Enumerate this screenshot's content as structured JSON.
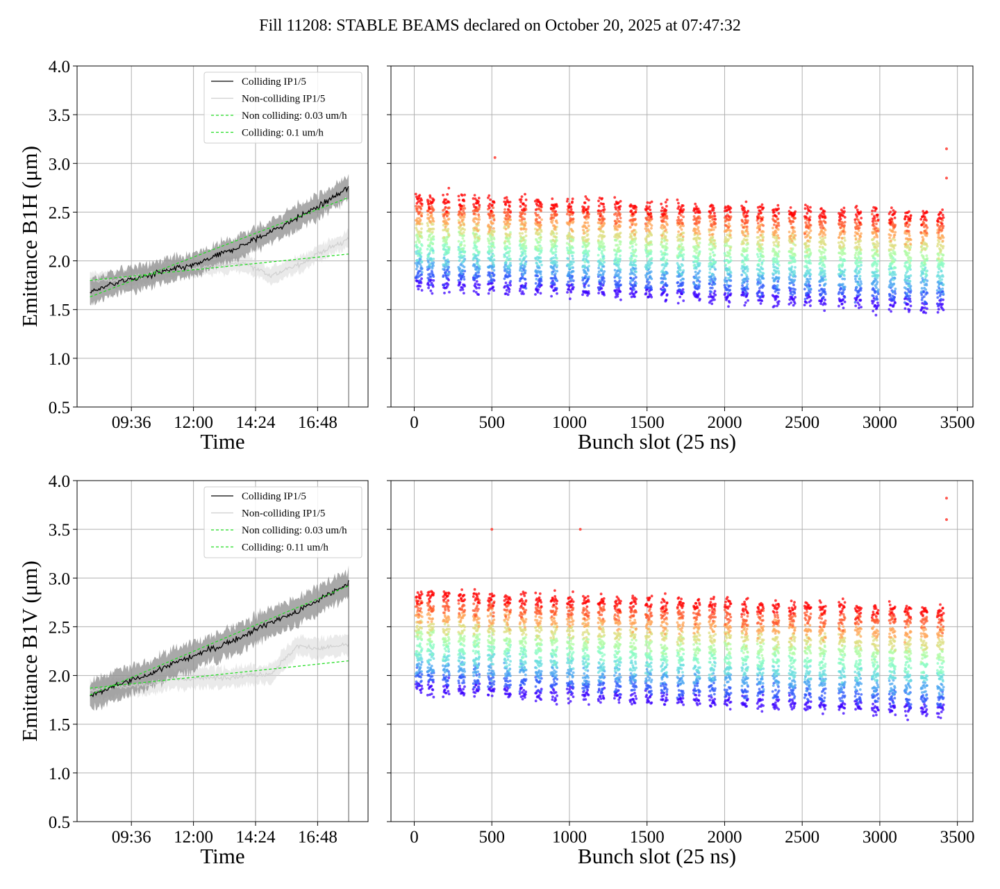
{
  "title": "Fill 11208: STABLE BEAMS declared on October 20, 2025 at 07:47:32",
  "chart_data": [
    {
      "type": "line",
      "panel": "top-left",
      "xlabel": "Time",
      "ylabel": "Emittance B1H (μm)",
      "ylim": [
        0.5,
        4.0
      ],
      "yticks": [
        "4.0",
        "3.5",
        "3.0",
        "2.5",
        "2.0",
        "1.5",
        "1.0",
        "0.5"
      ],
      "xticks": [
        "09:36",
        "12:00",
        "14:24",
        "16:48"
      ],
      "grid": true,
      "legend_position": "top-right",
      "legend": [
        "Colliding IP1/5",
        "Non-colliding IP1/5",
        "Non colliding: 0.03 um/h",
        "Colliding: 0.1 um/h"
      ],
      "series": [
        {
          "name": "Colliding IP1/5",
          "x": [
            "08:00",
            "09:00",
            "10:00",
            "11:00",
            "12:00",
            "13:00",
            "14:00",
            "15:00",
            "16:00",
            "17:00",
            "18:00"
          ],
          "y": [
            1.68,
            1.78,
            1.83,
            1.9,
            1.95,
            2.06,
            2.17,
            2.3,
            2.44,
            2.58,
            2.75
          ],
          "band": 0.12
        },
        {
          "name": "Non-colliding IP1/5",
          "x": [
            "08:00",
            "09:00",
            "10:00",
            "11:00",
            "12:00",
            "13:00",
            "14:00",
            "15:00",
            "16:00",
            "17:00",
            "18:00"
          ],
          "y": [
            1.8,
            1.8,
            1.85,
            1.9,
            1.93,
            1.95,
            1.98,
            1.85,
            1.95,
            2.1,
            2.22
          ],
          "band": 0.08
        },
        {
          "name": "Non colliding: 0.03 um/h",
          "x": [
            "08:00",
            "18:00"
          ],
          "y": [
            1.8,
            2.07
          ]
        },
        {
          "name": "Colliding: 0.1 um/h",
          "x": [
            "08:00",
            "18:00"
          ],
          "y": [
            1.63,
            2.65
          ]
        }
      ]
    },
    {
      "type": "scatter",
      "panel": "top-right",
      "xlabel": "Bunch slot (25 ns)",
      "ylim": [
        0.5,
        4.0
      ],
      "xlim": [
        -150,
        3600
      ],
      "xticks": [
        "0",
        "500",
        "1000",
        "1500",
        "2000",
        "2500",
        "3000",
        "3500"
      ],
      "grid": true,
      "colormap": "rainbow (violet = early, red = late)",
      "trains": [
        10,
        85,
        185,
        285,
        380,
        475,
        580,
        680,
        780,
        880,
        985,
        1085,
        1185,
        1290,
        1390,
        1490,
        1590,
        1695,
        1800,
        1900,
        2000,
        2110,
        2210,
        2310,
        2415,
        2515,
        2610,
        2735,
        2840,
        2950,
        3060,
        3160,
        3265,
        3370
      ],
      "train_length_slots": 40,
      "start_range_um": [
        1.6,
        2.1
      ],
      "end_range_um": [
        1.45,
        2.75
      ],
      "outliers": [
        {
          "x": 3430,
          "y": 3.15
        },
        {
          "x": 3430,
          "y": 2.85
        },
        {
          "x": 520,
          "y": 3.06
        }
      ]
    },
    {
      "type": "line",
      "panel": "bottom-left",
      "xlabel": "Time",
      "ylabel": "Emittance B1V (μm)",
      "ylim": [
        0.5,
        4.0
      ],
      "yticks": [
        "4.0",
        "3.5",
        "3.0",
        "2.5",
        "2.0",
        "1.5",
        "1.0",
        "0.5"
      ],
      "xticks": [
        "09:36",
        "12:00",
        "14:24",
        "16:48"
      ],
      "grid": true,
      "legend_position": "top-right",
      "legend": [
        "Colliding IP1/5",
        "Non-colliding IP1/5",
        "Non colliding: 0.03 um/h",
        "Colliding: 0.11 um/h"
      ],
      "series": [
        {
          "name": "Colliding IP1/5",
          "x": [
            "08:00",
            "09:00",
            "10:00",
            "11:00",
            "12:00",
            "13:00",
            "14:00",
            "15:00",
            "16:00",
            "17:00",
            "18:00"
          ],
          "y": [
            1.78,
            1.9,
            1.98,
            2.1,
            2.2,
            2.3,
            2.42,
            2.55,
            2.65,
            2.8,
            2.95
          ],
          "band": 0.14
        },
        {
          "name": "Non-colliding IP1/5",
          "x": [
            "08:00",
            "09:00",
            "10:00",
            "11:00",
            "12:00",
            "13:00",
            "14:00",
            "15:00",
            "16:00",
            "17:00",
            "18:00"
          ],
          "y": [
            1.85,
            1.88,
            1.9,
            1.95,
            1.97,
            1.98,
            2.0,
            2.02,
            2.3,
            2.28,
            2.32
          ],
          "band": 0.1
        },
        {
          "name": "Non colliding: 0.03 um/h",
          "x": [
            "08:00",
            "18:00"
          ],
          "y": [
            1.87,
            2.15
          ]
        },
        {
          "name": "Colliding: 0.11 um/h",
          "x": [
            "08:00",
            "18:00"
          ],
          "y": [
            1.8,
            2.92
          ]
        }
      ]
    },
    {
      "type": "scatter",
      "panel": "bottom-right",
      "xlabel": "Bunch slot (25 ns)",
      "ylim": [
        0.5,
        4.0
      ],
      "xlim": [
        -150,
        3600
      ],
      "xticks": [
        "0",
        "500",
        "1000",
        "1500",
        "2000",
        "2500",
        "3000",
        "3500"
      ],
      "grid": true,
      "colormap": "rainbow (violet = early, red = late)",
      "trains": [
        10,
        85,
        185,
        285,
        380,
        475,
        580,
        680,
        780,
        880,
        985,
        1085,
        1185,
        1290,
        1390,
        1490,
        1590,
        1695,
        1800,
        1900,
        2000,
        2110,
        2210,
        2310,
        2415,
        2515,
        2610,
        2735,
        2840,
        2950,
        3060,
        3160,
        3265,
        3370
      ],
      "train_length_slots": 40,
      "start_range_um": [
        1.7,
        2.2
      ],
      "end_range_um": [
        1.45,
        2.95
      ],
      "outliers": [
        {
          "x": 3430,
          "y": 3.82
        },
        {
          "x": 3430,
          "y": 3.6
        },
        {
          "x": 500,
          "y": 3.5
        },
        {
          "x": 1070,
          "y": 3.5
        }
      ]
    }
  ]
}
